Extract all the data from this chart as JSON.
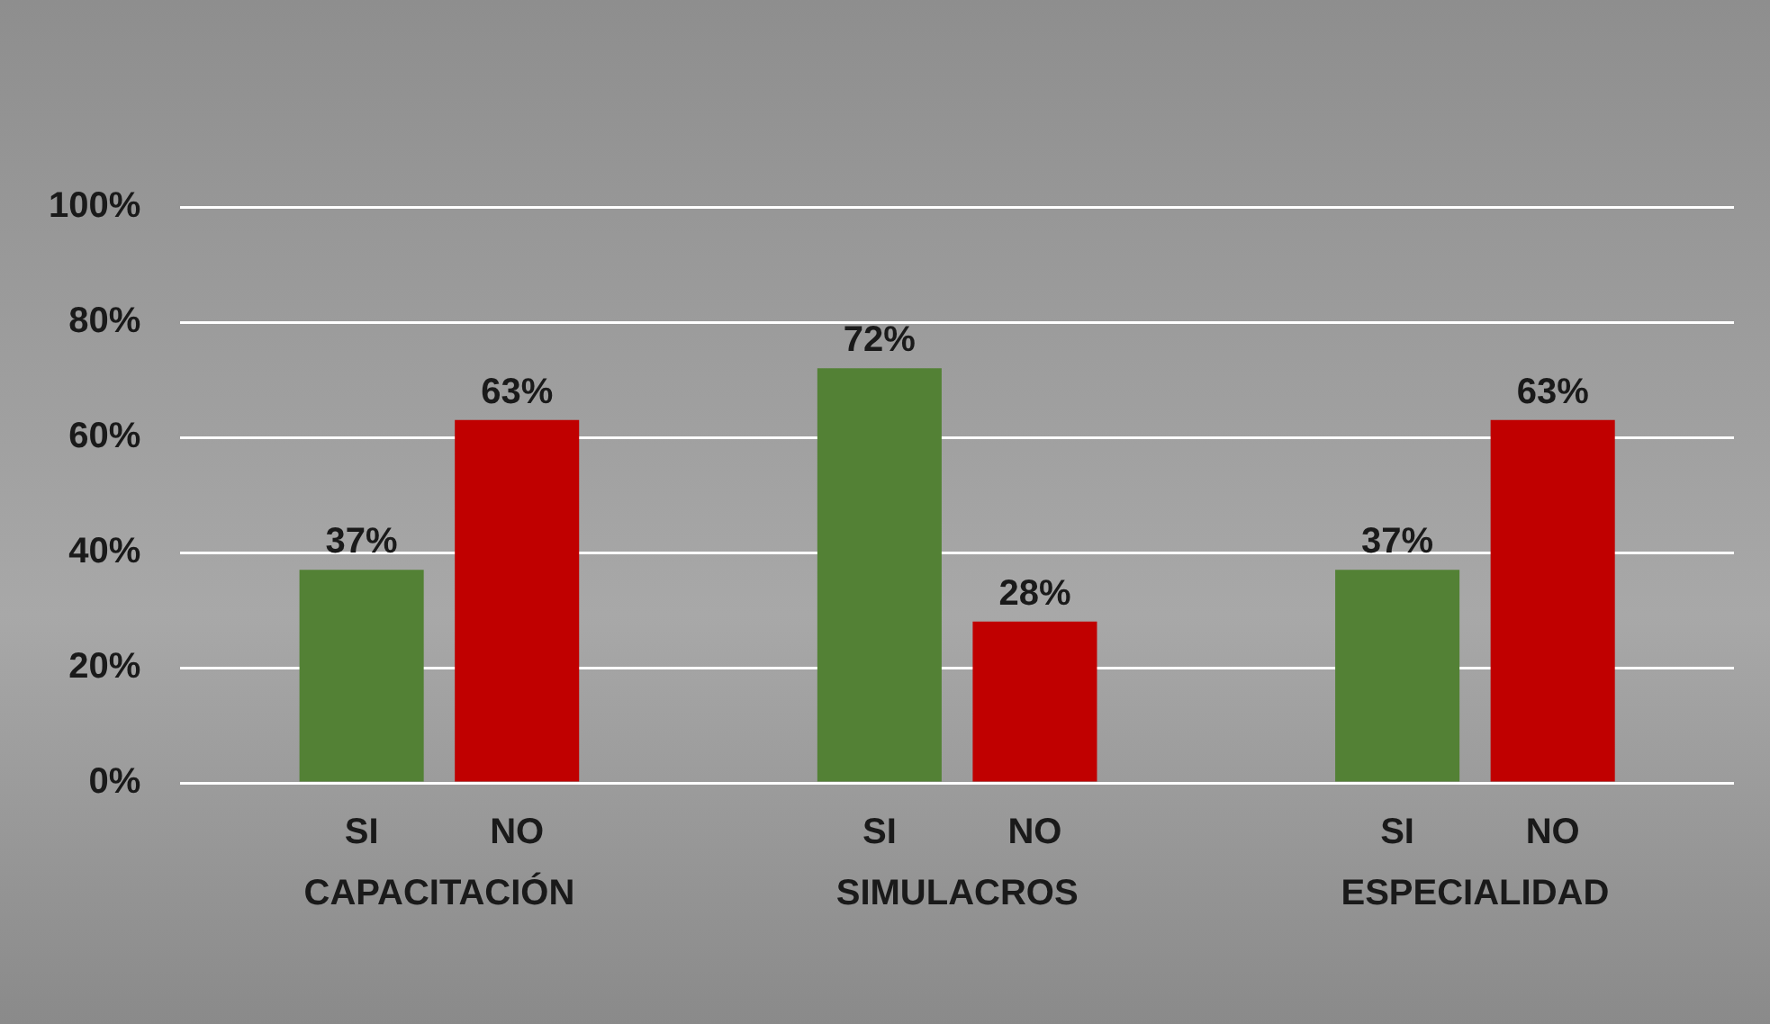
{
  "chart_data": {
    "type": "bar",
    "categories": [
      "CAPACITACIÓN",
      "SIMULACROS",
      "ESPECIALIDAD"
    ],
    "series": [
      {
        "name": "SI",
        "color": "#538135",
        "values": [
          37,
          72,
          37
        ],
        "value_labels": [
          "37%",
          "72%",
          "37%"
        ]
      },
      {
        "name": "NO",
        "color": "#c00000",
        "values": [
          63,
          28,
          63
        ],
        "value_labels": [
          "63%",
          "28%",
          "63%"
        ]
      }
    ],
    "ylim": [
      0,
      100
    ],
    "yticks": [
      {
        "value": 0,
        "label": "0%"
      },
      {
        "value": 20,
        "label": "20%"
      },
      {
        "value": 40,
        "label": "40%"
      },
      {
        "value": 60,
        "label": "60%"
      },
      {
        "value": 80,
        "label": "80%"
      },
      {
        "value": 100,
        "label": "100%"
      }
    ],
    "grid": "y",
    "legend": false
  }
}
